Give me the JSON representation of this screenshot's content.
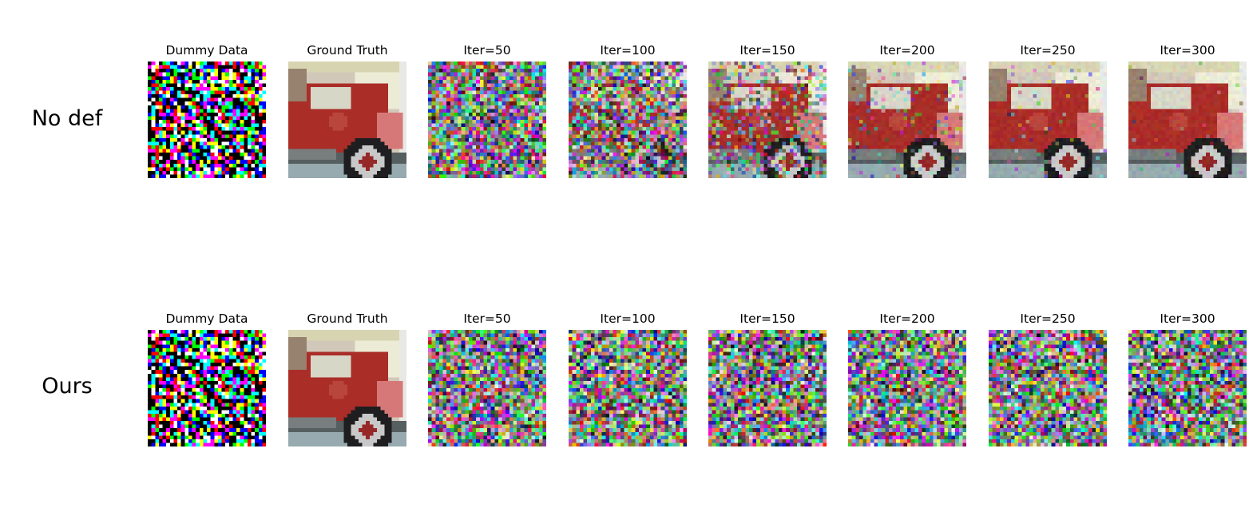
{
  "figure": {
    "rows": [
      {
        "label": "No def",
        "panels": [
          {
            "caption": "Dummy Data",
            "kind": "dummy"
          },
          {
            "caption": "Ground Truth",
            "kind": "truth"
          },
          {
            "caption": "Iter=50",
            "kind": "recon",
            "clarity": 0.0
          },
          {
            "caption": "Iter=100",
            "kind": "recon",
            "clarity": 0.15
          },
          {
            "caption": "Iter=150",
            "kind": "recon",
            "clarity": 0.55
          },
          {
            "caption": "Iter=200",
            "kind": "recon",
            "clarity": 0.85
          },
          {
            "caption": "Iter=250",
            "kind": "recon",
            "clarity": 0.95
          },
          {
            "caption": "Iter=300",
            "kind": "recon",
            "clarity": 0.98
          }
        ]
      },
      {
        "label": "Ours",
        "panels": [
          {
            "caption": "Dummy Data",
            "kind": "dummy"
          },
          {
            "caption": "Ground Truth",
            "kind": "truth"
          },
          {
            "caption": "Iter=50",
            "kind": "recon",
            "clarity": 0.0
          },
          {
            "caption": "Iter=100",
            "kind": "recon",
            "clarity": 0.0
          },
          {
            "caption": "Iter=150",
            "kind": "recon",
            "clarity": 0.0
          },
          {
            "caption": "Iter=200",
            "kind": "recon",
            "clarity": 0.0
          },
          {
            "caption": "Iter=250",
            "kind": "recon",
            "clarity": 0.0
          },
          {
            "caption": "Iter=300",
            "kind": "recon",
            "clarity": 0.0
          }
        ]
      }
    ]
  }
}
